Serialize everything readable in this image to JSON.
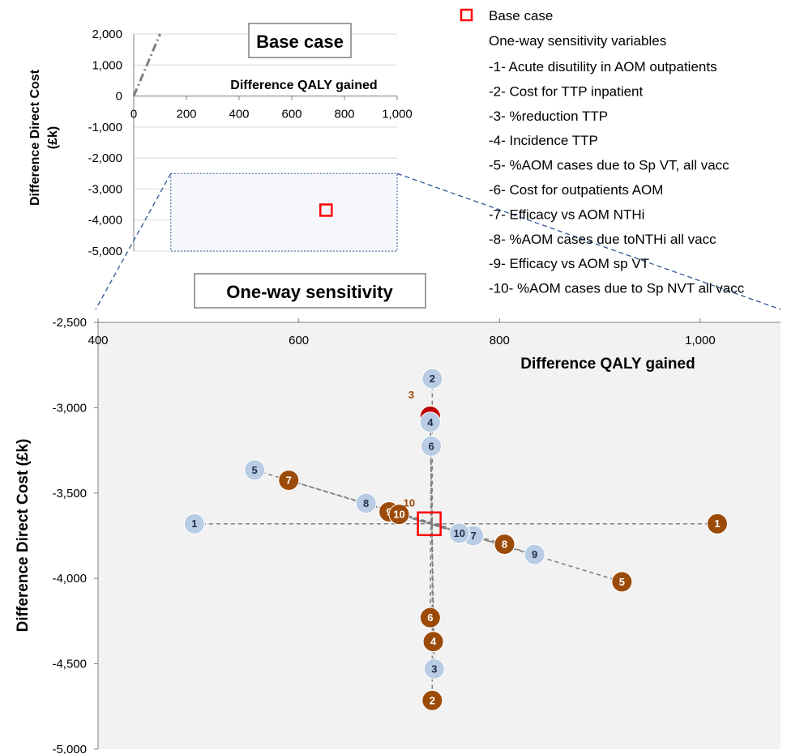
{
  "inset": {
    "title": "Base case",
    "xlabel": "Difference QALY gained",
    "ylabel": [
      "Difference Direct Cost",
      "(£k)"
    ],
    "xticks": [
      "0",
      "200",
      "400",
      "600",
      "800",
      "1,000"
    ],
    "yticks": [
      "2,000",
      "1,000",
      "0",
      "-1,000",
      "-2,000",
      "-3,000",
      "-4,000",
      "-5,000"
    ],
    "xlim": [
      0,
      1000
    ],
    "ylim": [
      -5000,
      2000
    ],
    "line_x": [
      0,
      100
    ],
    "line_y": [
      0,
      2000
    ],
    "base_case": {
      "x": 730,
      "y": -3680
    },
    "zoom_window": {
      "x": [
        350,
        1000
      ],
      "y": [
        -5000,
        -2500
      ]
    }
  },
  "main_title": "One-way sensitivity",
  "legend": {
    "base_case": "Base case",
    "heading": "One-way sensitivity variables",
    "items": [
      "-1- Acute disutility in AOM outpatients",
      "-2- Cost for TTP inpatient",
      "-3- %reduction TTP",
      "-4- Incidence TTP",
      "-5- %AOM cases due to Sp VT, all vacc",
      "-6- Cost for outpatients AOM",
      "-7- Efficacy vs AOM NTHi",
      "-8- %AOM cases due toNTHi all vacc",
      "-9- Efficacy vs AOM sp VT",
      "-10- %AOM cases due to Sp NVT all vacc"
    ]
  },
  "colors": {
    "low": "#b8cce4",
    "high": "#9c4a08",
    "base_case": "#ff0000",
    "axis": "#808080",
    "dash": "#808080",
    "inset_line": "#808080",
    "zoom_lines": "#2e5597",
    "plot_bg": "#f2f2f2"
  },
  "chart_data": {
    "type": "scatter",
    "title": "One-way sensitivity",
    "xlabel": "Difference QALY gained",
    "ylabel": "Difference Direct Cost (£k)",
    "xlim": [
      400,
      1080
    ],
    "ylim": [
      -5000,
      -2500
    ],
    "xticks": [
      "400",
      "600",
      "800",
      "1,000"
    ],
    "yticks": [
      "-2,500",
      "-3,000",
      "-3,500",
      "-4,000",
      "-4,500",
      "-5,000"
    ],
    "base_case": {
      "x": 730,
      "y": -3680
    },
    "series": [
      {
        "name": "low",
        "points": [
          {
            "label": "1",
            "x": 496,
            "y": -3680
          },
          {
            "label": "2",
            "x": 733,
            "y": -2830
          },
          {
            "label": "3",
            "x": 735,
            "y": -4530
          },
          {
            "label": "4",
            "x": 731,
            "y": -3085
          },
          {
            "label": "5",
            "x": 556,
            "y": -3365
          },
          {
            "label": "6",
            "x": 732,
            "y": -3225
          },
          {
            "label": "7",
            "x": 774,
            "y": -3750
          },
          {
            "label": "8",
            "x": 667,
            "y": -3560
          },
          {
            "label": "9",
            "x": 835,
            "y": -3860
          },
          {
            "label": "10",
            "x": 760,
            "y": -3735
          }
        ]
      },
      {
        "name": "high",
        "points": [
          {
            "label": "1",
            "x": 1017,
            "y": -3680
          },
          {
            "label": "2",
            "x": 733,
            "y": -4715
          },
          {
            "label": "3",
            "x": 731,
            "y": -3050
          },
          {
            "label": "4",
            "x": 734,
            "y": -4370
          },
          {
            "label": "5",
            "x": 922,
            "y": -4020
          },
          {
            "label": "6",
            "x": 731,
            "y": -4230
          },
          {
            "label": "7",
            "x": 590,
            "y": -3425
          },
          {
            "label": "8",
            "x": 805,
            "y": -3800
          },
          {
            "label": "9",
            "x": 690,
            "y": -3610
          },
          {
            "label": "10",
            "x": 700,
            "y": -3625
          }
        ]
      }
    ],
    "annotations": [
      {
        "text": "3",
        "x": 712,
        "y": -2945
      },
      {
        "text": "10",
        "x": 710,
        "y": -3580
      }
    ],
    "dashed_pairs": [
      [
        "1",
        "1"
      ],
      [
        "2",
        "2"
      ],
      [
        "5",
        "5"
      ],
      [
        "7",
        "7"
      ],
      [
        "8",
        "8"
      ],
      [
        "9",
        "9"
      ],
      [
        "6",
        "6"
      ],
      [
        "4",
        "4"
      ],
      [
        "3",
        "3"
      ],
      [
        "10",
        "10"
      ]
    ]
  }
}
